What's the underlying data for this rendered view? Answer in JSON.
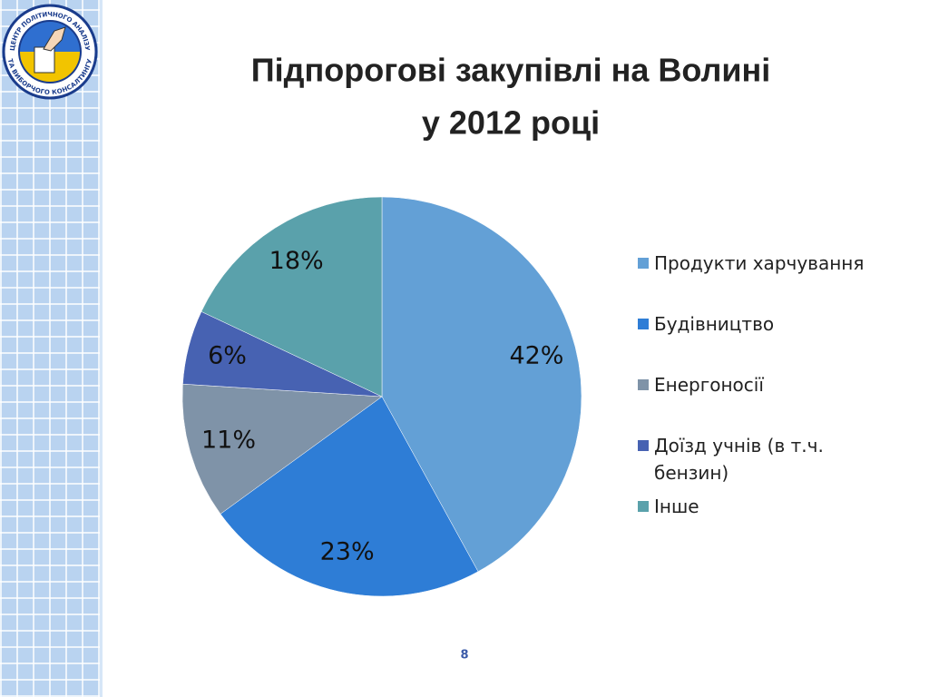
{
  "logo_text": [
    "ЦЕНТР ПОЛІТИЧНОГО АНАЛІЗУ",
    "ТА ВИБОРЧОГО КОНСАЛТИНГУ"
  ],
  "page_number": "8",
  "chart_data": {
    "type": "pie",
    "title": [
      "Підпорогові закупівлі на Волині",
      "у 2012 році"
    ],
    "categories": [
      "Продукти харчування",
      "Будівництво",
      "Енергоносії",
      "Доїзд учнів (в т.ч. бензин)",
      "Інше"
    ],
    "values": [
      42,
      23,
      11,
      6,
      18
    ],
    "value_labels": [
      "42%",
      "23%",
      "11%",
      "6%",
      "18%"
    ],
    "colors": [
      "#63a0d6",
      "#2e7dd6",
      "#7f93a8",
      "#4762b2",
      "#5aa1ab"
    ],
    "legend": "right"
  }
}
